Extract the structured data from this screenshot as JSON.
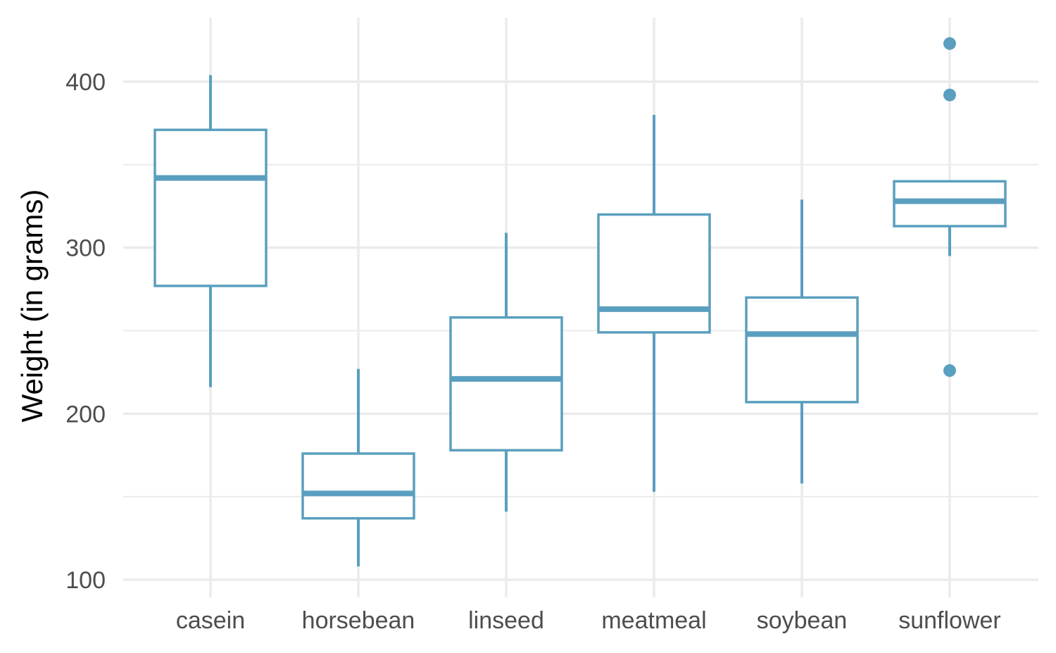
{
  "chart_data": {
    "type": "box",
    "title": "",
    "xlabel": "",
    "ylabel": "Weight (in grams)",
    "ylim": [
      93,
      438
    ],
    "y_ticks": [
      100,
      200,
      300,
      400
    ],
    "grid": true,
    "legend": "none",
    "color": "#5a9fbf",
    "categories": [
      "casein",
      "horsebean",
      "linseed",
      "meatmeal",
      "soybean",
      "sunflower"
    ],
    "boxes": [
      {
        "category": "casein",
        "min": 216,
        "q1": 277,
        "median": 342,
        "q3": 371,
        "max": 404,
        "outliers": []
      },
      {
        "category": "horsebean",
        "min": 108,
        "q1": 137,
        "median": 152,
        "q3": 176,
        "max": 227,
        "outliers": []
      },
      {
        "category": "linseed",
        "min": 141,
        "q1": 178,
        "median": 221,
        "q3": 258,
        "max": 309,
        "outliers": []
      },
      {
        "category": "meatmeal",
        "min": 153,
        "q1": 249,
        "median": 263,
        "q3": 320,
        "max": 380,
        "outliers": []
      },
      {
        "category": "soybean",
        "min": 158,
        "q1": 207,
        "median": 248,
        "q3": 270,
        "max": 329,
        "outliers": []
      },
      {
        "category": "sunflower",
        "min": 295,
        "q1": 313,
        "median": 328,
        "q3": 340,
        "max": 340,
        "outliers": [
          423,
          392,
          226
        ]
      }
    ]
  }
}
